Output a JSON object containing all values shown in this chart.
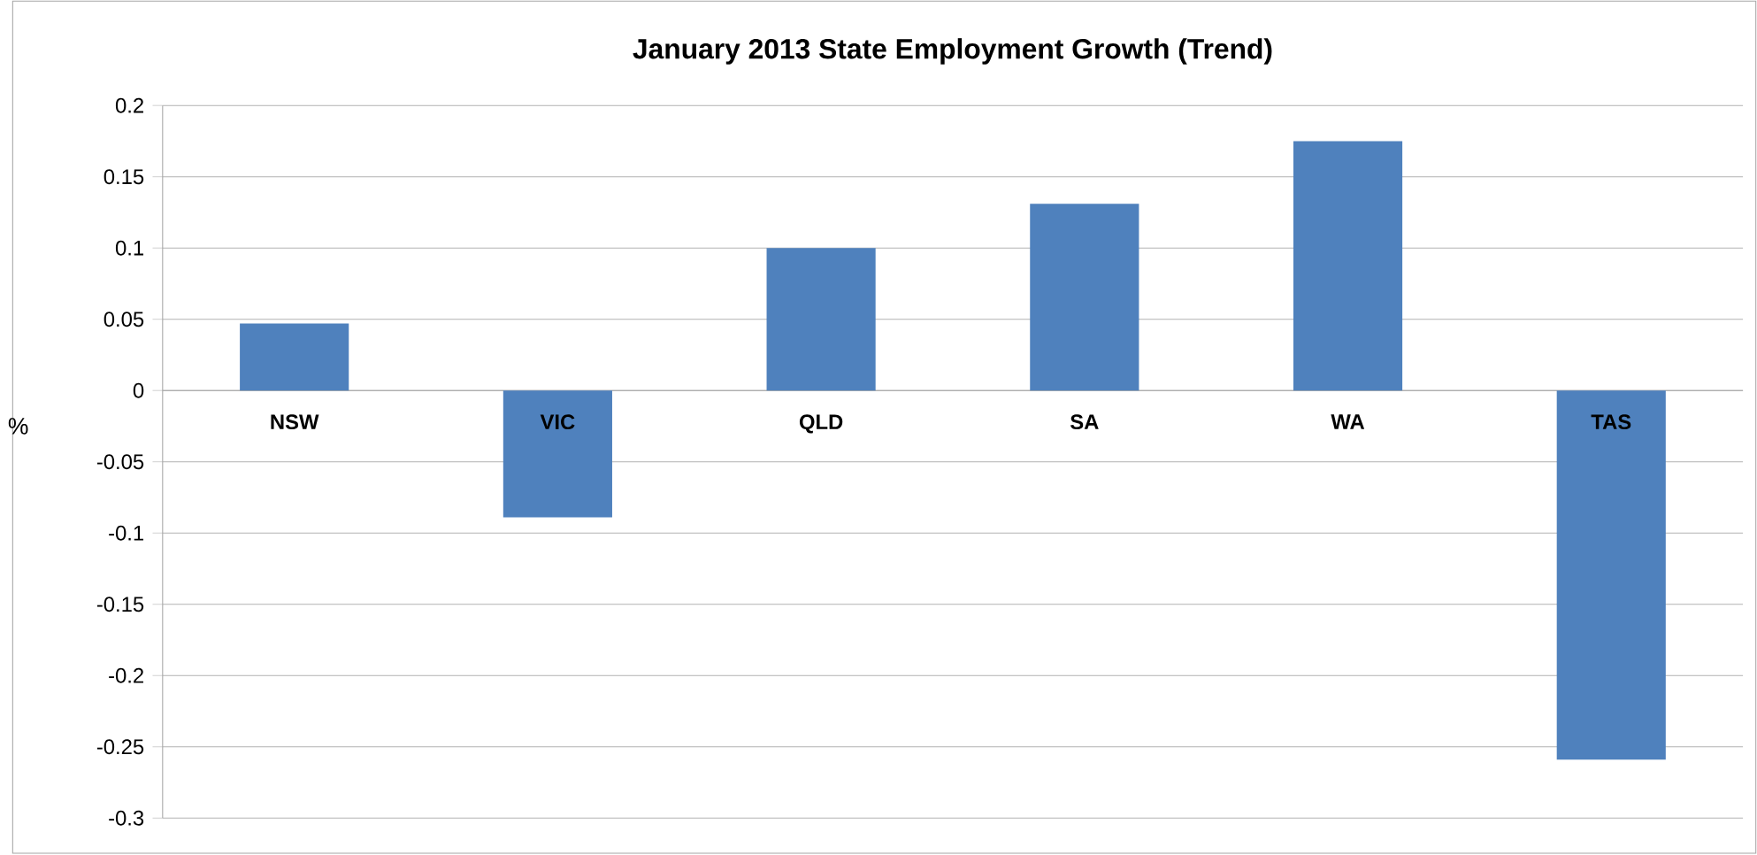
{
  "chart_data": {
    "type": "bar",
    "title": "January 2013 State Employment Growth (Trend)",
    "ylabel": "%",
    "categories": [
      "NSW",
      "VIC",
      "QLD",
      "SA",
      "WA",
      "TAS"
    ],
    "values": [
      0.047,
      -0.089,
      0.1,
      0.131,
      0.175,
      -0.259
    ],
    "color": "#4f81bd",
    "ylim": [
      -0.3,
      0.2
    ],
    "yticks": [
      -0.3,
      -0.25,
      -0.2,
      -0.15,
      -0.1,
      -0.05,
      0,
      0.05,
      0.1,
      0.15,
      0.2
    ],
    "grid": "y"
  }
}
